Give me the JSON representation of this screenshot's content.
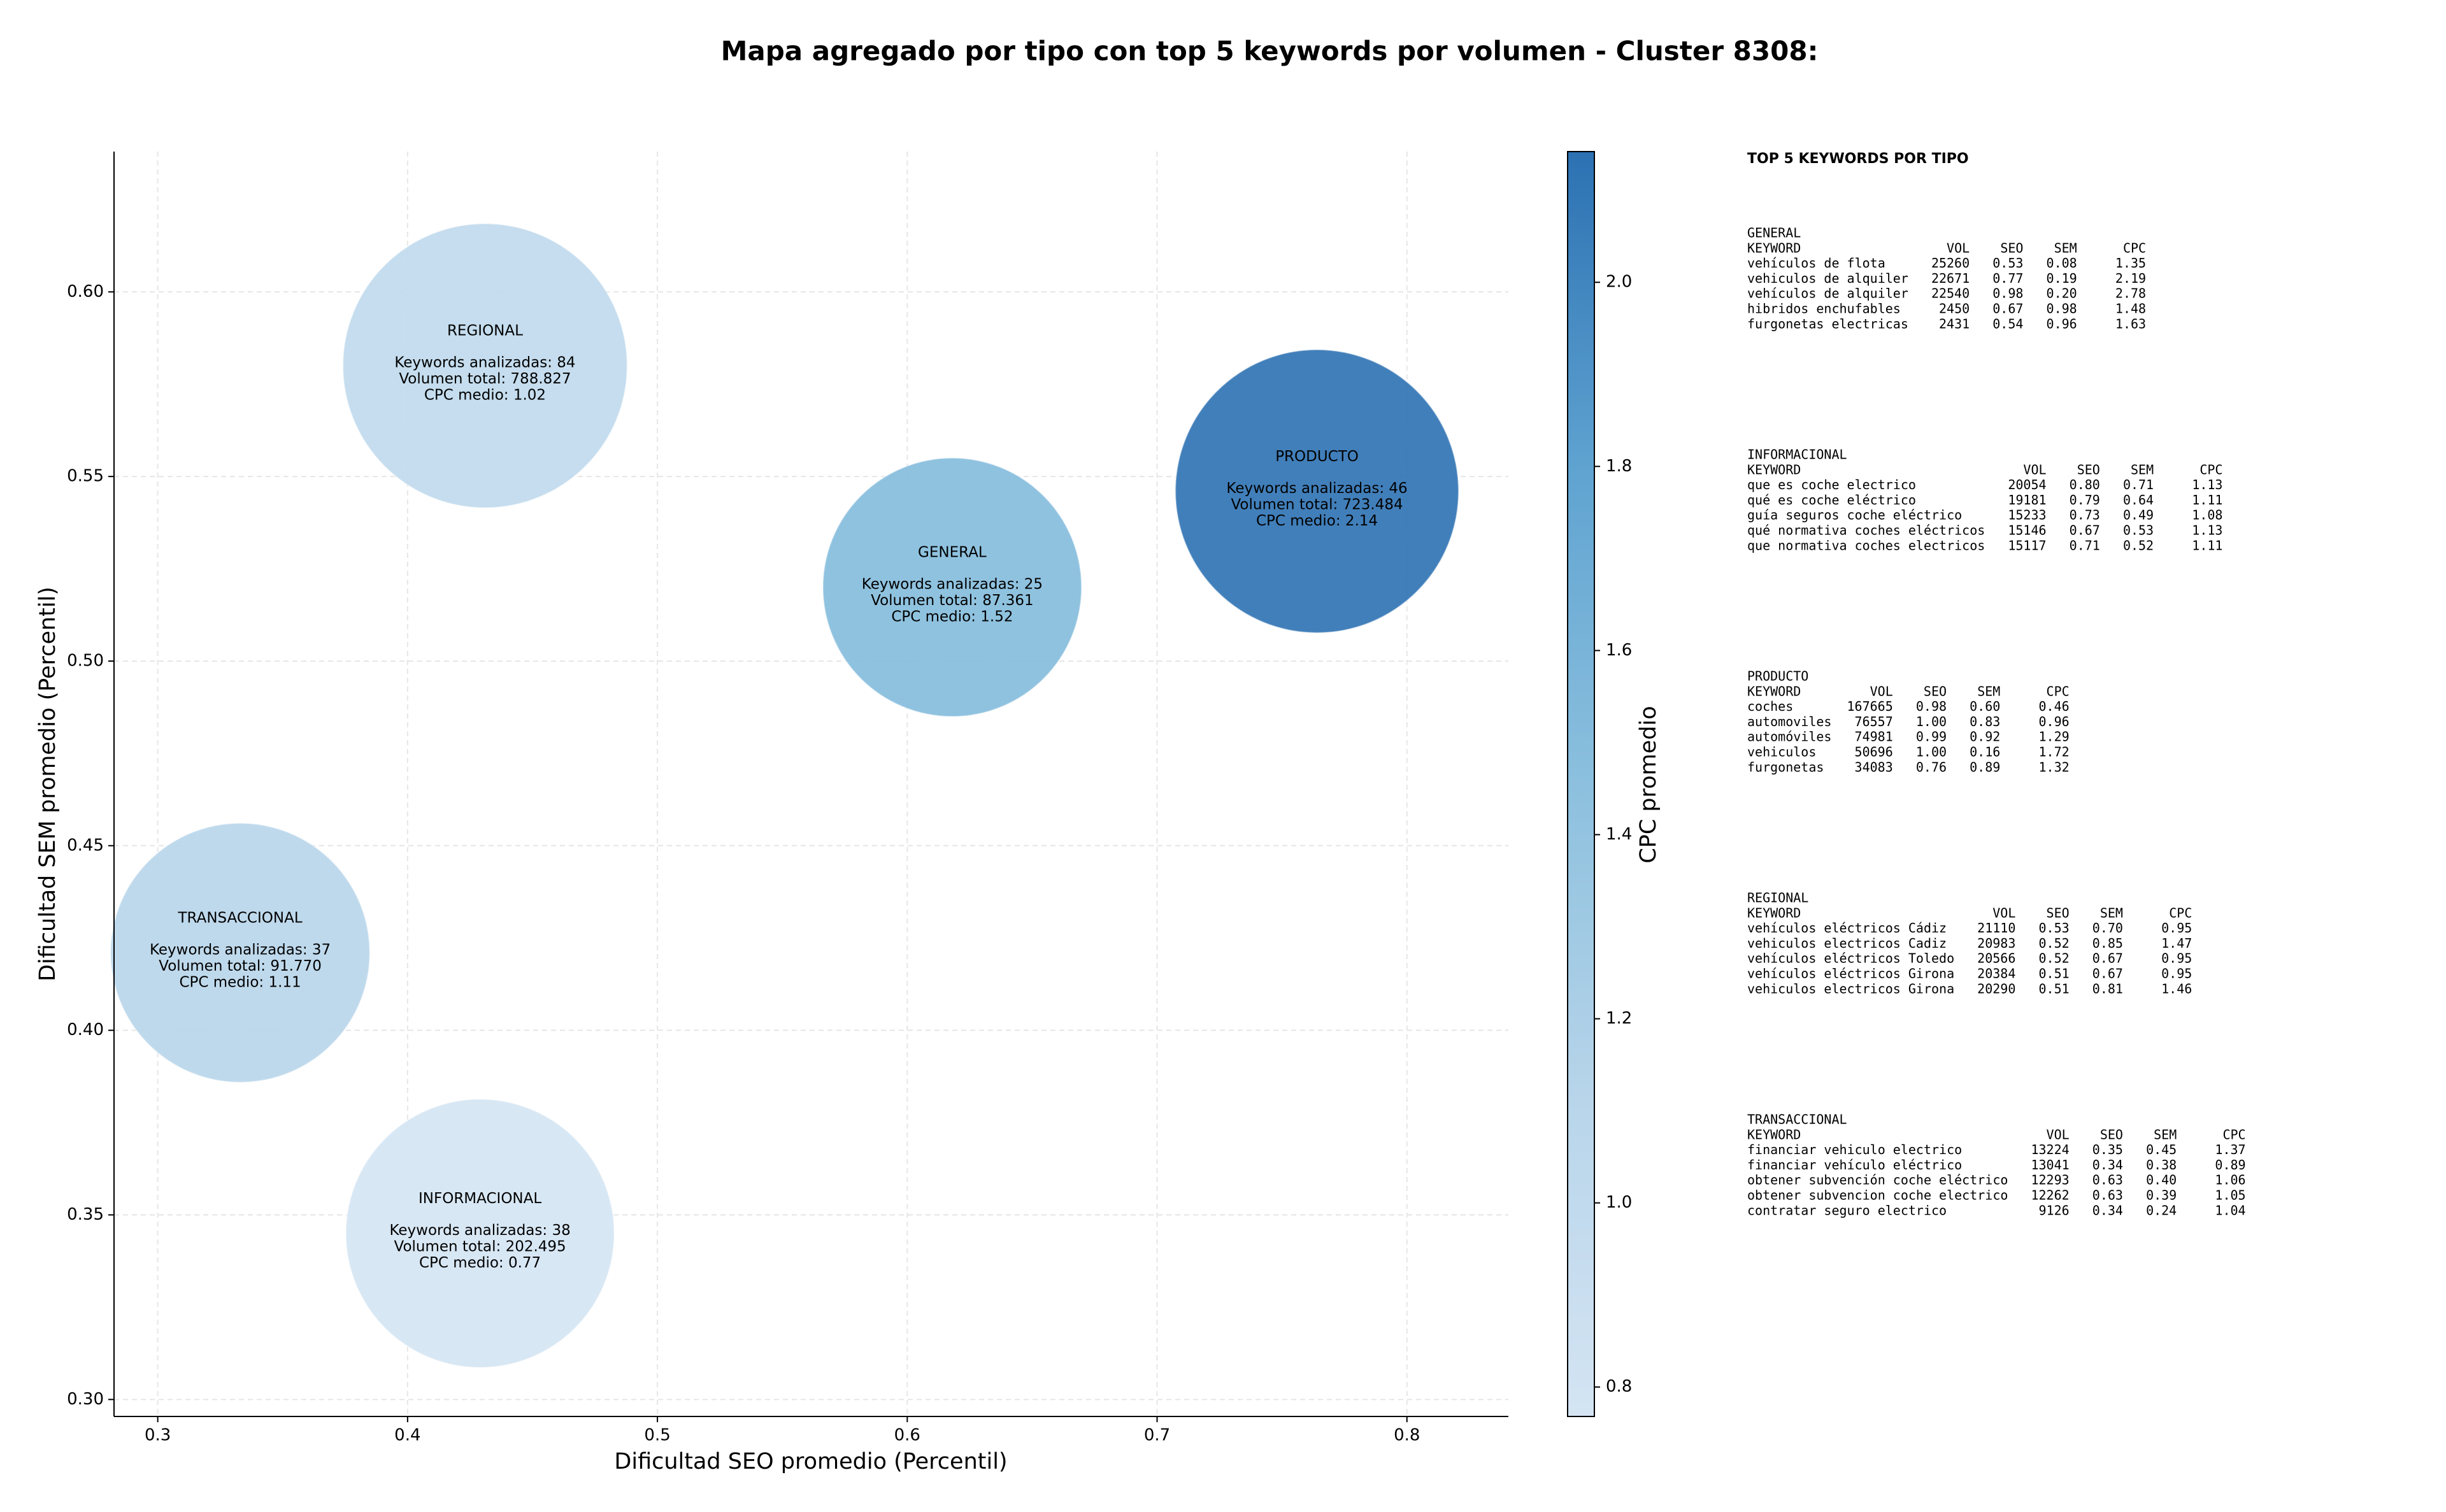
{
  "chart_data": {
    "type": "scatter",
    "title": "Mapa agregado por tipo con top 5 keywords por volumen - Cluster 8308:",
    "x_label": "Dificultad SEO promedio (Percentil)",
    "y_label": "Dificultad SEM promedio (Percentil)",
    "categories": [
      "REGIONAL",
      "GENERAL",
      "PRODUCTO",
      "TRANSACCIONAL",
      "INFORMACIONAL"
    ],
    "x": [
      0.431,
      0.618,
      0.764,
      0.333,
      0.429
    ],
    "values": [
      0.58,
      0.52,
      0.546,
      0.421,
      0.345
    ],
    "sizes": [
      788827,
      87361,
      723484,
      91770,
      202495
    ],
    "cpc": [
      1.02,
      1.52,
      2.14,
      1.11,
      0.77
    ],
    "annotations": [
      [
        "Keywords analizadas: 84",
        "Volumen total: 788.827",
        "CPC medio: 1.02"
      ],
      [
        "Keywords analizadas: 25",
        "Volumen total: 87.361",
        "CPC medio: 1.52"
      ],
      [
        "Keywords analizadas: 46",
        "Volumen total: 723.484",
        "CPC medio: 2.14"
      ],
      [
        "Keywords analizadas: 37",
        "Volumen total: 91.770",
        "CPC medio: 1.11"
      ],
      [
        "Keywords analizadas: 38",
        "Volumen total: 202.495",
        "CPC medio: 0.77"
      ]
    ],
    "xlim": [
      0.2825,
      0.8406
    ],
    "ylim": [
      0.2954,
      0.638
    ],
    "xticks": [
      0.3,
      0.4,
      0.5,
      0.6,
      0.7,
      0.8
    ],
    "yticks": [
      {
        "value": 0.3,
        "label": "0.30"
      },
      0.35,
      {
        "value": 0.4,
        "label": "0.40"
      },
      0.45,
      {
        "value": 0.5,
        "label": "0.50"
      },
      0.55,
      {
        "value": 0.6,
        "label": "0.60"
      }
    ],
    "grid": true,
    "colorbar": {
      "label": "CPC promedio",
      "lim": [
        0.768,
        2.142
      ],
      "ticks": [
        0.8,
        {
          "value": 1.0,
          "label": "1.0"
        },
        1.2,
        1.4,
        1.6,
        1.8,
        {
          "value": 2.0,
          "label": "2.0"
        }
      ],
      "colormap": [
        "#d4e4f3",
        "#b8d5ea",
        "#8cc0de",
        "#5fa3d1",
        "#2c71b2"
      ]
    },
    "side_panel": {
      "title": "TOP 5 KEYWORDS POR TIPO",
      "tables": [
        {
          "name": "GENERAL",
          "header": [
            "KEYWORD",
            "VOL",
            "SEO",
            "SEM",
            "CPC"
          ],
          "rows": [
            [
              "vehículos de flota",
              "25260",
              "0.53",
              "0.08",
              "1.35"
            ],
            [
              "vehiculos de alquiler",
              "22671",
              "0.77",
              "0.19",
              "2.19"
            ],
            [
              "vehículos de alquiler",
              "22540",
              "0.98",
              "0.20",
              "2.78"
            ],
            [
              "hibridos enchufables",
              "2450",
              "0.67",
              "0.98",
              "1.48"
            ],
            [
              "furgonetas electricas",
              "2431",
              "0.54",
              "0.96",
              "1.63"
            ]
          ]
        },
        {
          "name": "INFORMACIONAL",
          "header": [
            "KEYWORD",
            "VOL",
            "SEO",
            "SEM",
            "CPC"
          ],
          "rows": [
            [
              "que es coche electrico",
              "20054",
              "0.80",
              "0.71",
              "1.13"
            ],
            [
              "qué es coche eléctrico",
              "19181",
              "0.79",
              "0.64",
              "1.11"
            ],
            [
              "guía seguros coche eléctrico",
              "15233",
              "0.73",
              "0.49",
              "1.08"
            ],
            [
              "qué normativa coches eléctricos",
              "15146",
              "0.67",
              "0.53",
              "1.13"
            ],
            [
              "que normativa coches electricos",
              "15117",
              "0.71",
              "0.52",
              "1.11"
            ]
          ]
        },
        {
          "name": "PRODUCTO",
          "header": [
            "KEYWORD",
            "VOL",
            "SEO",
            "SEM",
            "CPC"
          ],
          "rows": [
            [
              "coches",
              "167665",
              "0.98",
              "0.60",
              "0.46"
            ],
            [
              "automoviles",
              "76557",
              "1.00",
              "0.83",
              "0.96"
            ],
            [
              "automóviles",
              "74981",
              "0.99",
              "0.92",
              "1.29"
            ],
            [
              "vehiculos",
              "50696",
              "1.00",
              "0.16",
              "1.72"
            ],
            [
              "furgonetas",
              "34083",
              "0.76",
              "0.89",
              "1.32"
            ]
          ]
        },
        {
          "name": "REGIONAL",
          "header": [
            "KEYWORD",
            "VOL",
            "SEO",
            "SEM",
            "CPC"
          ],
          "rows": [
            [
              "vehículos eléctricos Cádiz",
              "21110",
              "0.53",
              "0.70",
              "0.95"
            ],
            [
              "vehiculos electricos Cadiz",
              "20983",
              "0.52",
              "0.85",
              "1.47"
            ],
            [
              "vehículos eléctricos Toledo",
              "20566",
              "0.52",
              "0.67",
              "0.95"
            ],
            [
              "vehículos eléctricos Girona",
              "20384",
              "0.51",
              "0.67",
              "0.95"
            ],
            [
              "vehiculos electricos Girona",
              "20290",
              "0.51",
              "0.81",
              "1.46"
            ]
          ]
        },
        {
          "name": "TRANSACCIONAL",
          "header": [
            "KEYWORD",
            "VOL",
            "SEO",
            "SEM",
            "CPC"
          ],
          "rows": [
            [
              "financiar vehiculo electrico",
              "13224",
              "0.35",
              "0.45",
              "1.37"
            ],
            [
              "financiar vehículo eléctrico",
              "13041",
              "0.34",
              "0.38",
              "0.89"
            ],
            [
              "obtener subvención coche eléctrico",
              "12293",
              "0.63",
              "0.40",
              "1.06"
            ],
            [
              "obtener subvencion coche electrico",
              "12262",
              "0.63",
              "0.39",
              "1.05"
            ],
            [
              "contratar seguro electrico",
              "9126",
              "0.34",
              "0.24",
              "1.04"
            ]
          ]
        }
      ]
    }
  }
}
